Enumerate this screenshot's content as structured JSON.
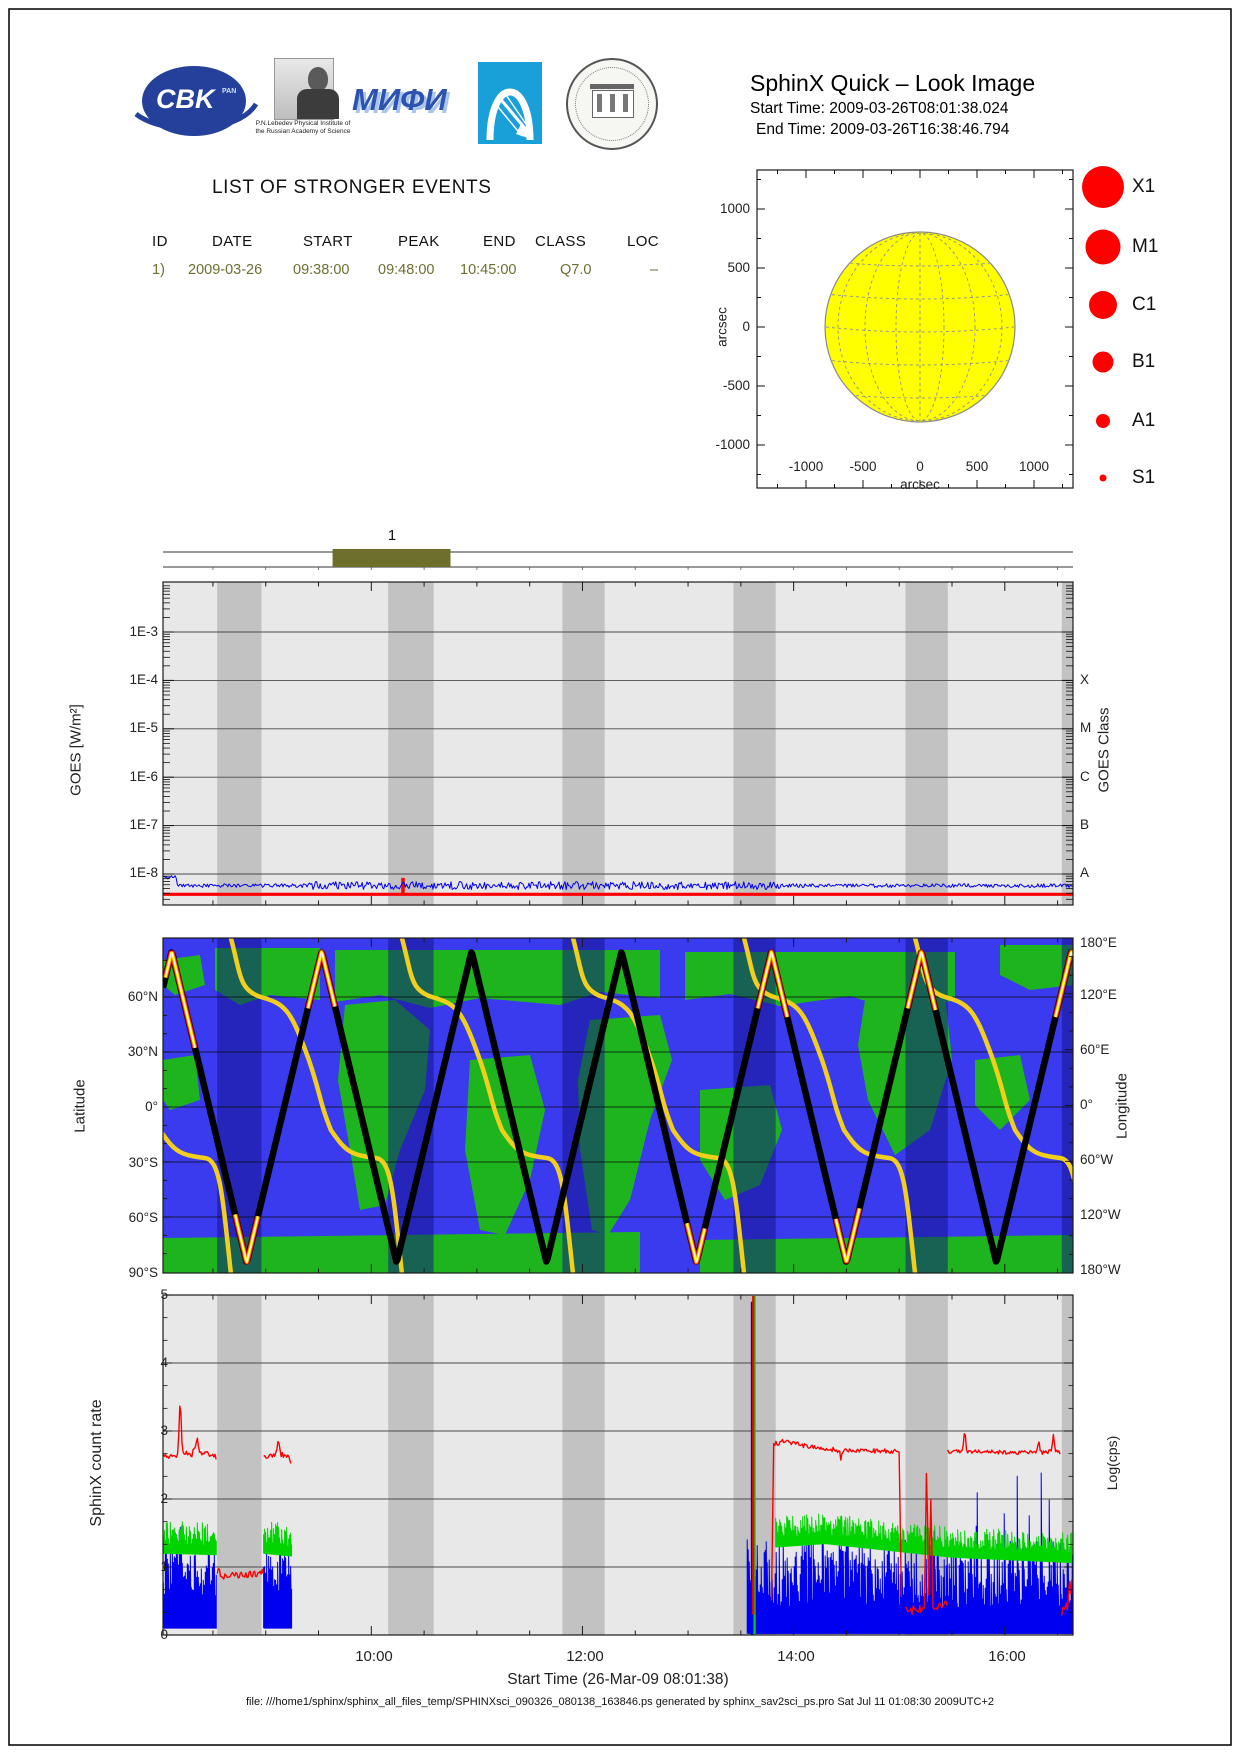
{
  "header": {
    "title": "SphinX Quick – Look Image",
    "start_line": "Start Time: 2009-03-26T08:01:38.024",
    "end_line": "End Time: 2009-03-26T16:38:46.794",
    "logos": {
      "cbk_text": "CBK",
      "cbk_sub": "PAN",
      "lebedev_caption": "P.N.Lebedev Physical Institute of the Russian Academy of Science",
      "mephi_text": "МИФИ"
    }
  },
  "events": {
    "title": "LIST OF STRONGER EVENTS",
    "columns": [
      "ID",
      "DATE",
      "START",
      "PEAK",
      "END",
      "CLASS",
      "LOC"
    ],
    "rows": [
      {
        "id": "1)",
        "date": "2009-03-26",
        "start": "09:38:00",
        "peak": "09:48:00",
        "end": "10:45:00",
        "class": "Q7.0",
        "loc": "–"
      }
    ],
    "accent_color": "#6e6e32"
  },
  "event_strip": {
    "bar_label": "1"
  },
  "sun_plot": {
    "xlabel": "arcsec",
    "ylabel": "arcsec",
    "xticks": [
      "-1000",
      "-500",
      "0",
      "500",
      "1000"
    ],
    "yticks": [
      "1000",
      "500",
      "0",
      "-500",
      "-1000"
    ],
    "disk_color": "#ffff00"
  },
  "flare_legend": {
    "color": "#ff0000",
    "items": [
      {
        "label": "X1",
        "r": 21
      },
      {
        "label": "M1",
        "r": 17.5
      },
      {
        "label": "C1",
        "r": 14
      },
      {
        "label": "B1",
        "r": 10.5
      },
      {
        "label": "A1",
        "r": 7
      },
      {
        "label": "S1",
        "r": 3.5
      }
    ]
  },
  "goes": {
    "ylabel": "GOES [W/m²]",
    "yticks": [
      "1E-3",
      "1E-4",
      "1E-5",
      "1E-6",
      "1E-7",
      "1E-8"
    ],
    "right_label": "GOES Class",
    "right_ticks": [
      "X",
      "M",
      "C",
      "B",
      "A"
    ]
  },
  "map": {
    "left_label": "Latitude",
    "right_label": "Longitude",
    "lat_ticks": [
      "60°N",
      "30°N",
      "0°",
      "30°S",
      "60°S",
      "90°S"
    ],
    "lon_ticks": [
      "180°E",
      "120°E",
      "60°E",
      "0°",
      "60°W",
      "120°W",
      "180°W"
    ]
  },
  "sphinx": {
    "ylabel": "SphinX count rate",
    "right_label": "Log(cps)",
    "yticks": [
      "5",
      "4",
      "3",
      "2",
      "1",
      "0"
    ],
    "xticks": [
      "10:00",
      "12:00",
      "14:00",
      "16:00"
    ],
    "xlabel": "Start Time (26-Mar-09 08:01:38)"
  },
  "footer": "file: ///home1/sphinx/sphinx_all_files_temp/SPHINXsci_090326_080138_163846.ps generated by sphinx_sav2sci_ps.pro Sat Jul 11 01:08:30 2009UTC+2",
  "chart_data": {
    "time_axis": {
      "start_hour": 8.027,
      "end_hour": 16.646,
      "tick_hours": [
        10,
        12,
        14,
        16
      ]
    },
    "eclipse_bands_hours": [
      [
        8.54,
        8.96
      ],
      [
        10.16,
        10.59
      ],
      [
        11.81,
        12.21
      ],
      [
        13.43,
        13.83
      ],
      [
        15.06,
        15.46
      ],
      [
        16.54,
        16.65
      ]
    ],
    "event_intervals": [
      {
        "label": "1",
        "start_hour": 9.633,
        "end_hour": 10.75
      }
    ],
    "panels": [
      {
        "type": "scatter",
        "name": "solar-disk",
        "xlabel": "arcsec",
        "ylabel": "arcsec",
        "xlim": [
          -1400,
          1400
        ],
        "ylim": [
          -1350,
          1350
        ],
        "sun_radius_arcsec": 960,
        "flare_locations": [],
        "legend_entries": [
          "X1",
          "M1",
          "C1",
          "B1",
          "A1",
          "S1"
        ]
      },
      {
        "type": "line",
        "name": "goes-flux",
        "ylabel": "GOES [W/m2]",
        "y_log_exp_range": [
          -8.7,
          -2.0
        ],
        "yticks_exp": [
          -3,
          -4,
          -5,
          -6,
          -7,
          -8
        ],
        "right_ticks": [
          "X",
          "M",
          "C",
          "B",
          "A"
        ],
        "series": [
          {
            "name": "goes-long",
            "color": "#ff0000",
            "level_exp": -8.42,
            "spike": {
              "hour": 10.3,
              "peak_exp": -8.08
            }
          },
          {
            "name": "goes-short",
            "color": "#0000f0",
            "level_exp": -8.24,
            "start_level_exp": -8.07,
            "start_until_hour": 8.16,
            "noise_exp": 0.055
          }
        ]
      },
      {
        "type": "line",
        "name": "orbit-map",
        "ylabel": "Latitude",
        "y2label": "Longitude",
        "lat_range": [
          -90,
          90
        ],
        "lon_range": [
          -180,
          180
        ],
        "track": {
          "period_hours": 1.42,
          "first_peak_hour": 8.11,
          "peak_lat": 85,
          "min_lat": -85
        },
        "hot_segments_hours": [
          [
            8.05,
            8.33
          ],
          [
            8.71,
            8.93
          ],
          [
            9.4,
            9.66
          ],
          [
            12.99,
            13.16
          ],
          [
            13.66,
            13.94
          ],
          [
            14.4,
            14.63
          ],
          [
            15.08,
            15.35
          ],
          [
            16.48,
            16.64
          ]
        ],
        "longitude_wrap_start_hours": [
          7.05,
          8.67,
          10.29,
          11.91,
          13.53,
          15.15,
          16.77
        ]
      },
      {
        "type": "line",
        "name": "sphinx-count-rate",
        "ylim": [
          0,
          5
        ],
        "series": {
          "red": [
            {
              "t": [
                8.03,
                8.17,
                8.19,
                8.21,
                8.3,
                8.33,
                8.35,
                8.37,
                8.5,
                8.54
              ],
              "v": [
                2.62,
                2.65,
                3.55,
                2.7,
                2.65,
                2.78,
                2.9,
                2.68,
                2.65,
                2.6
              ],
              "n": 0.035
            },
            {
              "t": [
                8.54,
                8.6,
                8.98
              ],
              "v": [
                0.95,
                0.86,
                0.92
              ],
              "n": 0.05
            },
            {
              "t": [
                8.98,
                9.1,
                9.12,
                9.14,
                9.22,
                9.25
              ],
              "v": [
                2.62,
                2.65,
                2.9,
                2.66,
                2.62,
                2.45
              ],
              "n": 0.035
            },
            {
              "t": [
                13.79,
                13.81,
                13.9,
                14.2,
                14.44,
                14.45,
                14.46,
                15.0,
                15.02
              ],
              "v": [
                0.5,
                2.8,
                2.85,
                2.76,
                2.71,
                2.5,
                2.71,
                2.7,
                0.5
              ],
              "n": 0.035
            },
            {
              "t": [
                15.06,
                15.24,
                15.26,
                15.28,
                15.3,
                15.32,
                15.46
              ],
              "v": [
                0.35,
                0.4,
                2.6,
                0.5,
                2.05,
                0.42,
                0.45
              ],
              "n": 0.06
            },
            {
              "t": [
                15.46,
                15.6,
                15.62,
                15.64,
                16.3,
                16.32,
                16.34,
                16.44,
                16.46,
                16.48,
                16.53
              ],
              "v": [
                2.7,
                2.7,
                3.05,
                2.7,
                2.68,
                2.88,
                2.68,
                2.7,
                2.93,
                2.7,
                2.68
              ],
              "n": 0.03
            },
            {
              "t": [
                16.54,
                16.64
              ],
              "v": [
                0.5,
                0.55
              ],
              "n": 0.3
            }
          ],
          "green": [
            {
              "t": [
                8.03,
                8.54
              ],
              "v": [
                1.42,
                1.4
              ],
              "n": 0.17,
              "dense": true
            },
            {
              "t": [
                8.98,
                9.25
              ],
              "v": [
                1.42,
                1.38
              ],
              "n": 0.17,
              "dense": true
            },
            {
              "t": [
                13.83,
                14.3,
                15.5,
                16.64
              ],
              "v": [
                1.5,
                1.55,
                1.35,
                1.27
              ],
              "n": 0.16,
              "dense": true
            }
          ],
          "blue": [
            {
              "t": [
                8.03,
                8.17,
                8.19,
                8.21,
                8.54
              ],
              "v": [
                0.75,
                0.85,
                1.7,
                0.8,
                0.72
              ],
              "n": 0.33,
              "dense": true,
              "floor": 0.1
            },
            {
              "t": [
                8.98,
                9.25
              ],
              "v": [
                0.8,
                0.75
              ],
              "n": 0.33,
              "dense": true,
              "floor": 0.1
            },
            {
              "t": [
                13.56,
                16.64
              ],
              "v": [
                0.68,
                0.62
              ],
              "n": 0.5,
              "dense": true,
              "floor": 0.02,
              "spiky": 0.04
            }
          ],
          "spikes": [
            {
              "color": "#0000f0",
              "hour": 13.605,
              "base": 0,
              "top": 4.9
            },
            {
              "color": "#00d400",
              "hour": 13.63,
              "base": 0,
              "top": 5.2
            },
            {
              "color": "#ff0000",
              "hour": 13.617,
              "base": 0.3,
              "top": 5.2
            }
          ]
        }
      }
    ]
  }
}
